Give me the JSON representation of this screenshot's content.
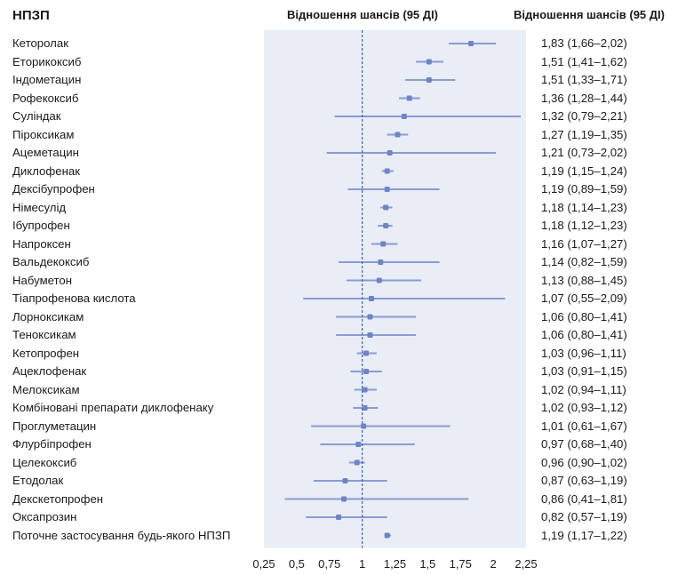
{
  "header": {
    "drug_col": "НПЗП",
    "plot_col": "Відношення шансів (95 ДІ)",
    "or_col": "Відношення шансів (95 ДІ)"
  },
  "chart_data": {
    "type": "forest",
    "xlim": [
      0.25,
      2.25
    ],
    "reference_line": 1,
    "x_ticks": [
      "0,25",
      "0,5",
      "0,75",
      "1",
      "1,25",
      "1,5",
      "1,75",
      "2",
      "2,25"
    ],
    "x_tick_values": [
      0.25,
      0.5,
      0.75,
      1,
      1.25,
      1.5,
      1.75,
      2,
      2.25
    ],
    "colors": {
      "band": "#e9edf6",
      "ci": "#8a9cd2",
      "point": "#6f84c2",
      "ref": "#3e63b5"
    },
    "rows": [
      {
        "label": "Кеторолак",
        "or": 1.83,
        "low": 1.66,
        "high": 2.02,
        "text": "1,83 (1,66–2,02)"
      },
      {
        "label": "Еторикоксиб",
        "or": 1.51,
        "low": 1.41,
        "high": 1.62,
        "text": "1,51 (1,41–1,62)"
      },
      {
        "label": "Індометацин",
        "or": 1.51,
        "low": 1.33,
        "high": 1.71,
        "text": "1,51 (1,33–1,71)"
      },
      {
        "label": "Рофекоксиб",
        "or": 1.36,
        "low": 1.28,
        "high": 1.44,
        "text": "1,36 (1,28–1,44)"
      },
      {
        "label": "Суліндак",
        "or": 1.32,
        "low": 0.79,
        "high": 2.21,
        "text": "1,32 (0,79–2,21)"
      },
      {
        "label": "Піроксикам",
        "or": 1.27,
        "low": 1.19,
        "high": 1.35,
        "text": "1,27 (1,19–1,35)"
      },
      {
        "label": "Ацеметацин",
        "or": 1.21,
        "low": 0.73,
        "high": 2.02,
        "text": "1,21 (0,73–2,02)"
      },
      {
        "label": "Диклофенак",
        "or": 1.19,
        "low": 1.15,
        "high": 1.24,
        "text": "1,19 (1,15–1,24)"
      },
      {
        "label": "Дексібупрофен",
        "or": 1.19,
        "low": 0.89,
        "high": 1.59,
        "text": "1,19 (0,89–1,59)"
      },
      {
        "label": "Німесулід",
        "or": 1.18,
        "low": 1.14,
        "high": 1.23,
        "text": "1,18 (1,14–1,23)"
      },
      {
        "label": "Ібупрофен",
        "or": 1.18,
        "low": 1.12,
        "high": 1.23,
        "text": "1,18 (1,12–1,23)"
      },
      {
        "label": "Напроксен",
        "or": 1.16,
        "low": 1.07,
        "high": 1.27,
        "text": "1,16 (1,07–1,27)"
      },
      {
        "label": "Вальдекоксиб",
        "or": 1.14,
        "low": 0.82,
        "high": 1.59,
        "text": "1,14 (0,82–1,59)"
      },
      {
        "label": "Набуметон",
        "or": 1.13,
        "low": 0.88,
        "high": 1.45,
        "text": "1,13 (0,88–1,45)"
      },
      {
        "label": "Тіапрофенова кислота",
        "or": 1.07,
        "low": 0.55,
        "high": 2.09,
        "text": "1,07 (0,55–2,09)"
      },
      {
        "label": "Лорноксикам",
        "or": 1.06,
        "low": 0.8,
        "high": 1.41,
        "text": "1,06 (0,80–1,41)"
      },
      {
        "label": "Теноксикам",
        "or": 1.06,
        "low": 0.8,
        "high": 1.41,
        "text": "1,06 (0,80–1,41)"
      },
      {
        "label": "Кетопрофен",
        "or": 1.03,
        "low": 0.96,
        "high": 1.11,
        "text": "1,03 (0,96–1,11)"
      },
      {
        "label": "Ацеклофенак",
        "or": 1.03,
        "low": 0.91,
        "high": 1.15,
        "text": "1,03 (0,91–1,15)"
      },
      {
        "label": "Мелоксикам",
        "or": 1.02,
        "low": 0.94,
        "high": 1.11,
        "text": "1,02 (0,94–1,11)"
      },
      {
        "label": "Комбіновані препарати диклофенаку",
        "or": 1.02,
        "low": 0.93,
        "high": 1.12,
        "text": "1,02 (0,93–1,12)"
      },
      {
        "label": "Проглуметацин",
        "or": 1.01,
        "low": 0.61,
        "high": 1.67,
        "text": "1,01 (0,61–1,67)"
      },
      {
        "label": "Флурбіпрофен",
        "or": 0.97,
        "low": 0.68,
        "high": 1.4,
        "text": "0,97 (0,68–1,40)"
      },
      {
        "label": "Целекоксиб",
        "or": 0.96,
        "low": 0.9,
        "high": 1.02,
        "text": "0,96 (0,90–1,02)"
      },
      {
        "label": "Етодолак",
        "or": 0.87,
        "low": 0.63,
        "high": 1.19,
        "text": "0,87 (0,63–1,19)"
      },
      {
        "label": "Декскетопрофен",
        "or": 0.86,
        "low": 0.41,
        "high": 1.81,
        "text": "0,86 (0,41–1,81)"
      },
      {
        "label": "Оксапрозин",
        "or": 0.82,
        "low": 0.57,
        "high": 1.19,
        "text": "0,82 (0,57–1,19)"
      },
      {
        "label": "Поточне застосування будь-якого НПЗП",
        "or": 1.19,
        "low": 1.17,
        "high": 1.22,
        "text": "1,19 (1,17–1,22)"
      }
    ]
  }
}
